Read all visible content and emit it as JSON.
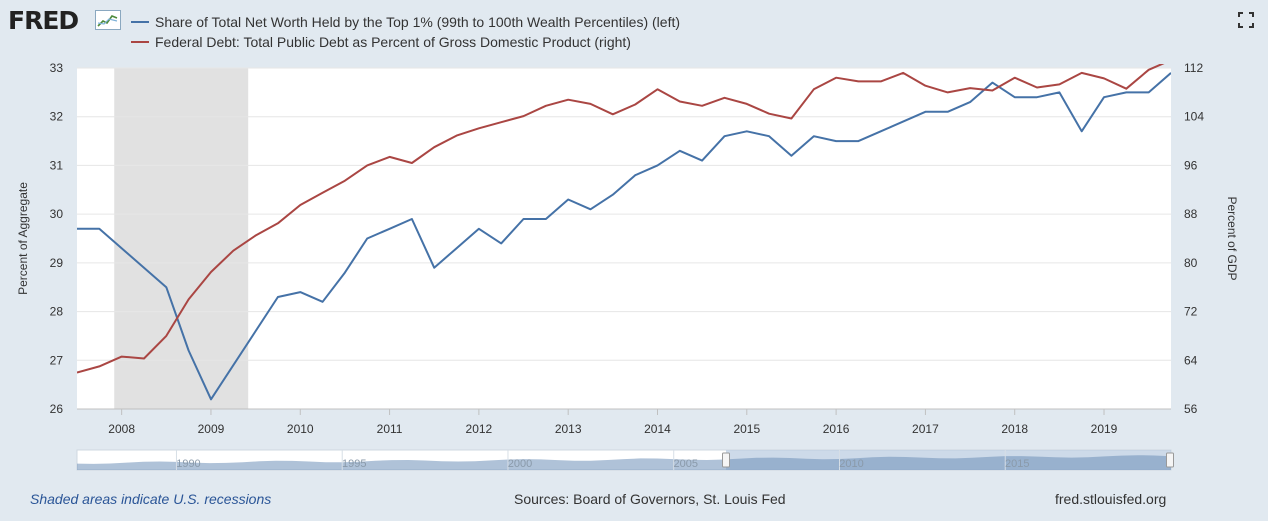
{
  "header": {
    "logo_text": "FRED",
    "fullscreen_icon": "expand-icon"
  },
  "legend": [
    {
      "label": "Share of Total Net Worth Held by the Top 1% (99th to 100th Wealth Percentiles) (left)",
      "color": "#4572a7"
    },
    {
      "label": "Federal Debt: Total Public Debt as Percent of Gross Domestic Product (right)",
      "color": "#aa4643"
    }
  ],
  "chart_data": {
    "type": "line",
    "left_axis": {
      "label": "Percent of Aggregate",
      "ticks": [
        "26",
        "27",
        "28",
        "29",
        "30",
        "31",
        "32",
        "33"
      ],
      "range": [
        26,
        33
      ]
    },
    "right_axis": {
      "label": "Percent of GDP",
      "ticks": [
        "56",
        "64",
        "72",
        "80",
        "88",
        "96",
        "104",
        "112"
      ],
      "range": [
        56,
        112
      ]
    },
    "x_ticks": [
      "2008",
      "2009",
      "2010",
      "2011",
      "2012",
      "2013",
      "2014",
      "2015",
      "2016",
      "2017",
      "2018",
      "2019"
    ],
    "x_range": [
      2007.5,
      2019.75
    ],
    "grid": true,
    "recession": [
      2007.917,
      2009.417
    ],
    "series": [
      {
        "name": "Share of Total Net Worth Held by the Top 1% (99th to 100th Wealth Percentiles) (left)",
        "axis": "left",
        "color": "#4572a7",
        "x": [
          2007.5,
          2007.75,
          2008.5,
          2008.75,
          2009.0,
          2009.75,
          2010.0,
          2010.25,
          2010.5,
          2010.75,
          2011.0,
          2011.25,
          2011.5,
          2011.75,
          2012.0,
          2012.25,
          2012.5,
          2012.75,
          2013.0,
          2013.25,
          2013.5,
          2013.75,
          2014.0,
          2014.25,
          2014.5,
          2014.75,
          2015.0,
          2015.25,
          2015.5,
          2015.75,
          2016.0,
          2016.25,
          2016.5,
          2016.75,
          2017.0,
          2017.25,
          2017.5,
          2017.75,
          2018.0,
          2018.25,
          2018.5,
          2018.75,
          2019.0,
          2019.25,
          2019.5,
          2019.75
        ],
        "values": [
          29.7,
          29.7,
          28.5,
          27.2,
          26.2,
          28.3,
          28.4,
          28.2,
          28.8,
          29.5,
          29.7,
          29.9,
          28.9,
          29.3,
          29.7,
          29.4,
          29.9,
          29.9,
          30.3,
          30.1,
          30.4,
          30.8,
          31.0,
          31.3,
          31.1,
          31.6,
          31.7,
          31.6,
          31.2,
          31.6,
          31.5,
          31.5,
          31.7,
          31.9,
          32.1,
          32.1,
          32.3,
          32.7,
          32.4,
          32.4,
          32.5,
          31.7,
          32.4,
          32.5,
          32.5,
          32.9
        ]
      },
      {
        "name": "Federal Debt: Total Public Debt as Percent of Gross Domestic Product (right)",
        "axis": "right",
        "color": "#aa4643",
        "x": [
          2007.5,
          2007.75,
          2008.0,
          2008.25,
          2008.5,
          2008.75,
          2009.0,
          2009.25,
          2009.5,
          2009.75,
          2010.0,
          2010.25,
          2010.5,
          2010.75,
          2011.0,
          2011.25,
          2011.5,
          2011.75,
          2012.0,
          2012.25,
          2012.5,
          2012.75,
          2013.0,
          2013.25,
          2013.5,
          2013.75,
          2014.0,
          2014.25,
          2014.5,
          2014.75,
          2015.0,
          2015.25,
          2015.5,
          2015.75,
          2016.0,
          2016.25,
          2016.5,
          2016.75,
          2017.0,
          2017.25,
          2017.5,
          2017.75,
          2018.0,
          2018.25,
          2018.5,
          2018.75,
          2019.0,
          2019.25,
          2019.5,
          2019.75
        ],
        "values": [
          62,
          63,
          64.6,
          64.3,
          68,
          74,
          78.5,
          82,
          84.5,
          86.5,
          89.5,
          91.5,
          93.5,
          96,
          97.4,
          96.4,
          99,
          100.9,
          102.1,
          103.1,
          104.1,
          105.8,
          106.8,
          106.1,
          104.4,
          106,
          108.5,
          106.5,
          105.8,
          107.1,
          106.1,
          104.5,
          103.7,
          108.5,
          110.4,
          109.8,
          109.8,
          111.2,
          109.1,
          108,
          108.7,
          108.3,
          110.4,
          108.8,
          109.3,
          111.2,
          110.3,
          108.6,
          111.7,
          113.3
        ]
      }
    ]
  },
  "navigator": {
    "labels": [
      "1990",
      "1995",
      "2000",
      "2005",
      "2010",
      "2015"
    ]
  },
  "footer": {
    "recessions_note": "Shaded areas indicate U.S. recessions",
    "sources": "Sources: Board of Governors, St. Louis Fed",
    "site": "fred.stlouisfed.org"
  }
}
